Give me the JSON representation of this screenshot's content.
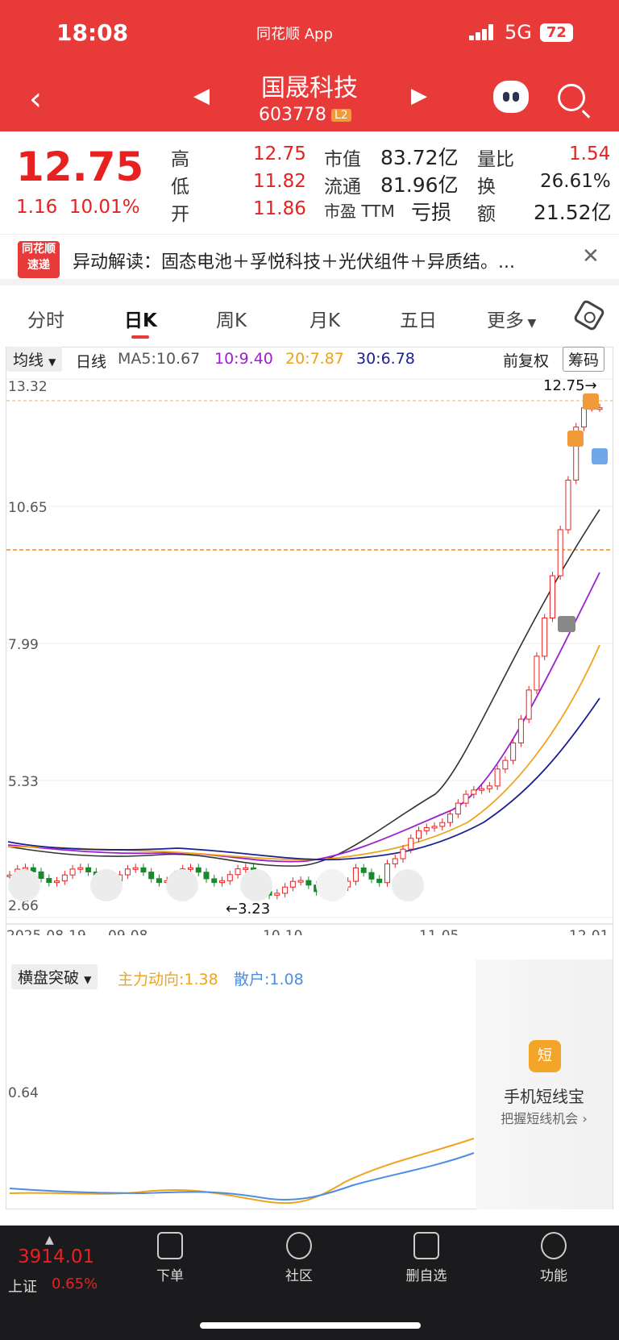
{
  "status": {
    "time": "18:08",
    "app": "同花顺 App",
    "network": "5G",
    "battery": "72"
  },
  "header": {
    "name": "国晟科技",
    "code": "603778",
    "badge": "L2"
  },
  "quote": {
    "price": "12.75",
    "change": "1.16",
    "pct": "10.01%",
    "rows": [
      [
        {
          "l": "高",
          "v": "12.75"
        },
        {
          "l": "市值",
          "v": "83.72亿"
        },
        {
          "l": "量比",
          "v": "1.54"
        }
      ],
      [
        {
          "l": "低",
          "v": "11.82"
        },
        {
          "l": "流通",
          "v": "81.96亿"
        },
        {
          "l": "换",
          "v": "26.61%"
        }
      ],
      [
        {
          "l": "开",
          "v": "11.86"
        },
        {
          "l": "市盈 TTM",
          "v": "亏损"
        },
        {
          "l": "额",
          "v": "21.52亿"
        }
      ]
    ]
  },
  "news": {
    "logo_top": "同花顺",
    "logo_bottom": "速递",
    "text": "异动解读：固态电池＋孚悦科技＋光伏组件＋异质结。..."
  },
  "tabs": [
    "分时",
    "日K",
    "周K",
    "月K",
    "五日",
    "更多"
  ],
  "ma": {
    "btn": "均线",
    "period": "日线",
    "ma5": "MA5:10.67",
    "ma10": "10:9.40",
    "ma20": "20:7.87",
    "ma30": "30:6.78",
    "fq": "前复权",
    "chouma": "筹码"
  },
  "axis": {
    "y": [
      "13.32",
      "10.65",
      "7.99",
      "5.33",
      "2.66"
    ],
    "x": [
      "2025-08-19",
      "09-08",
      "10-10",
      "11-05",
      "12-01"
    ],
    "last_label": "12.75→",
    "low_label": "←3.23"
  },
  "indicator": {
    "btn": "横盘突破",
    "main": "主力动向:1.38",
    "retail": "散户:1.08",
    "level": "0.64"
  },
  "ad": {
    "icon": "短",
    "title": "手机短线宝",
    "sub": "把握短线机会 ›"
  },
  "bottom": {
    "index_val": "3914.01",
    "index_name": "上证",
    "index_pct": "0.65%",
    "nav": [
      "下单",
      "社区",
      "删自选",
      "功能"
    ]
  },
  "chart_data": {
    "type": "candlestick",
    "y_range": [
      2.66,
      13.32
    ],
    "x_ticks": [
      "2025-08-19",
      "09-08",
      "10-10",
      "11-05",
      "12-01"
    ],
    "last_close": 12.75,
    "period_low": 3.23,
    "ma": {
      "MA5": 10.67,
      "MA10": 9.4,
      "MA20": 7.87,
      "MA30": 6.78
    },
    "indicator": {
      "name": "横盘突破",
      "主力动向": 1.38,
      "散户": 1.08
    }
  }
}
